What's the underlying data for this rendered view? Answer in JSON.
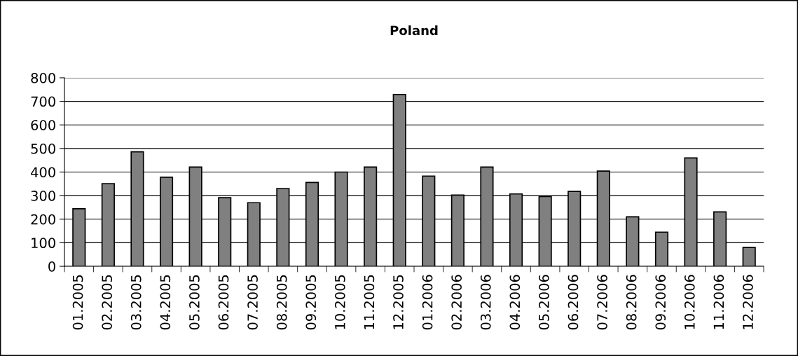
{
  "chart_data": {
    "type": "bar",
    "title": "Poland",
    "categories": [
      "01.2005",
      "02.2005",
      "03.2005",
      "04.2005",
      "05.2005",
      "06.2005",
      "07.2005",
      "08.2005",
      "09.2005",
      "10.2005",
      "11.2005",
      "12.2005",
      "01.2006",
      "02.2006",
      "03.2006",
      "04.2006",
      "05.2006",
      "06.2006",
      "07.2006",
      "08.2006",
      "09.2006",
      "10.2006",
      "11.2006",
      "12.2006"
    ],
    "values": [
      244,
      351,
      486,
      378,
      421,
      291,
      270,
      330,
      356,
      400,
      421,
      729,
      383,
      302,
      421,
      307,
      296,
      318,
      404,
      210,
      145,
      460,
      231,
      80
    ],
    "color": "#808080",
    "ylim": [
      0,
      800
    ],
    "yticks": [
      0,
      100,
      200,
      300,
      400,
      500,
      600,
      700,
      800
    ],
    "grid": "y",
    "legend": false
  }
}
